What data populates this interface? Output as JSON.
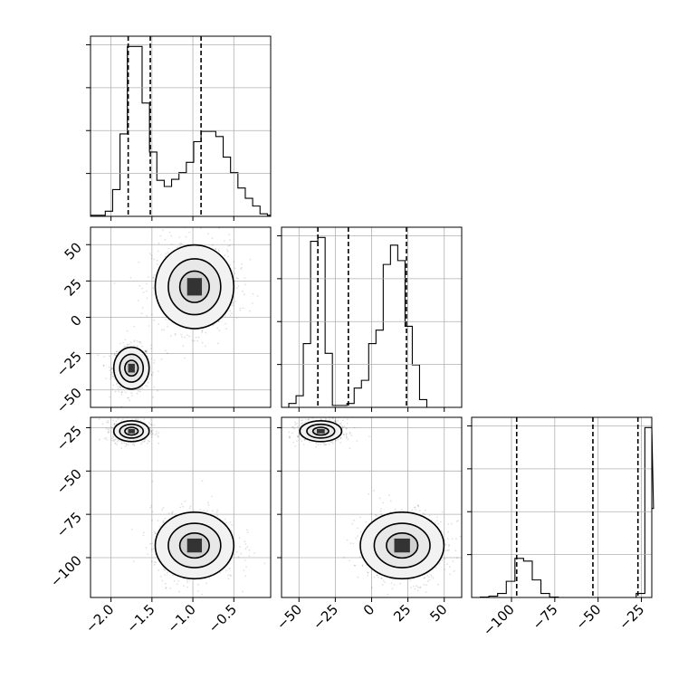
{
  "chart_data": {
    "type": "corner",
    "grid": true,
    "parameters": [
      {
        "id": "p0",
        "range": [
          -2.25,
          -0.05
        ],
        "ticks": [
          -2.0,
          -1.5,
          -1.0,
          -0.5
        ],
        "tick_labels": [
          "−2.0",
          "−1.5",
          "−1.0",
          "−0.5"
        ],
        "quantiles": [
          -1.79,
          -1.52,
          -0.9
        ]
      },
      {
        "id": "p1",
        "range": [
          -62,
          62
        ],
        "ticks": [
          -50,
          -25,
          0,
          25,
          50
        ],
        "tick_labels": [
          "−50",
          "−25",
          "0",
          "25",
          "50"
        ],
        "quantiles": [
          -37,
          -16,
          24
        ]
      },
      {
        "id": "p2",
        "range": [
          -123,
          -19
        ],
        "ticks": [
          -100,
          -75,
          -50,
          -25
        ],
        "tick_labels": [
          "−100",
          "−75",
          "−50",
          "−25"
        ],
        "quantiles": [
          -97,
          -53,
          -27
        ]
      }
    ],
    "histograms": [
      {
        "param": 0,
        "bin_start": -2.25,
        "bin_width": 0.09,
        "counts": [
          2,
          2,
          10,
          52,
          160,
          330,
          330,
          220,
          125,
          70,
          58,
          72,
          85,
          105,
          145,
          165,
          165,
          155,
          115,
          85,
          55,
          35,
          20,
          5,
          2
        ]
      },
      {
        "param": 1,
        "bin_start": -62,
        "bin_width": 5,
        "counts": [
          0,
          10,
          30,
          165,
          430,
          440,
          140,
          5,
          5,
          10,
          50,
          70,
          165,
          200,
          370,
          420,
          380,
          210,
          110,
          20,
          0
        ]
      },
      {
        "param": 2,
        "bin_start": -123,
        "bin_width": 5,
        "counts": [
          0,
          3,
          10,
          30,
          120,
          290,
          270,
          130,
          30,
          3,
          0,
          0,
          0,
          0,
          0,
          0,
          0,
          0,
          0,
          30,
          1260,
          660
        ]
      }
    ],
    "clusters": [
      {
        "x": -1.75,
        "y": -35,
        "z": -27,
        "sx": 0.09,
        "sy": 6,
        "sz": 2.5,
        "weight": 0.5
      },
      {
        "x": -0.98,
        "y": 21,
        "z": -93,
        "sx": 0.2,
        "sy": 12,
        "sz": 8,
        "weight": 0.5
      }
    ]
  }
}
